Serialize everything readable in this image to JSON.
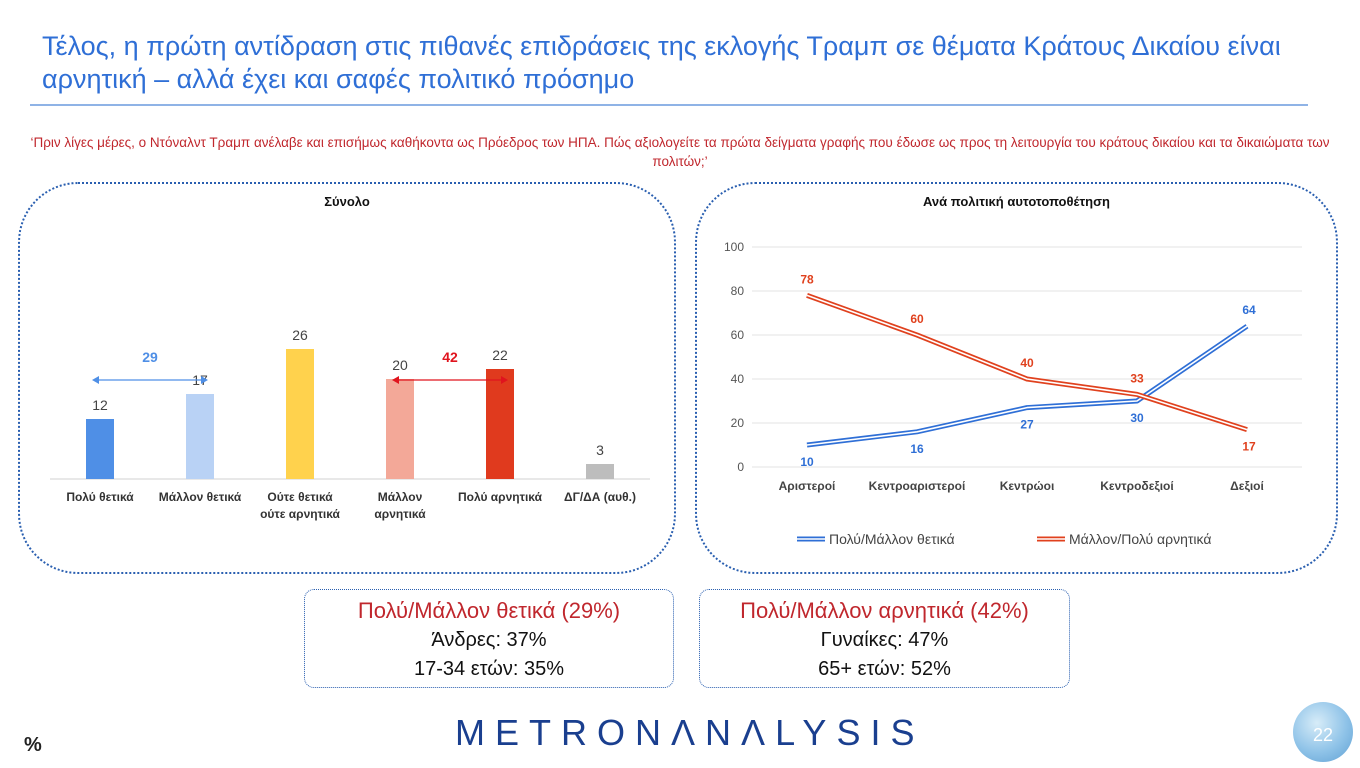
{
  "title": "Τέλος, η πρώτη αντίδραση στις πιθανές επιδράσεις της εκλογής Τραμπ σε θέματα Κράτους Δικαίου είναι αρνητική – αλλά έχει και σαφές πολιτικό πρόσημο",
  "question": "‘Πριν λίγες μέρες, ο Ντόναλντ Τραμπ ανέλαβε και επισήμως καθήκοντα ως Πρόεδρος των ΗΠΑ. Πώς αξιολογείτε τα πρώτα δείγματα γραφής που έδωσε ως προς τη λειτουργία του κράτους δικαίου και τα δικαιώματα των πολιτών;’",
  "chart_data": [
    {
      "type": "bar",
      "title": "Σύνολο",
      "categories": [
        [
          "Πολύ θετικά"
        ],
        [
          "Μάλλον θετικά"
        ],
        [
          "Ούτε θετικά",
          "ούτε αρνητικά"
        ],
        [
          "Μάλλον",
          "αρνητικά"
        ],
        [
          "Πολύ αρνητικά"
        ],
        [
          "ΔΓ/ΔΑ (αυθ.)"
        ]
      ],
      "values": [
        12,
        17,
        26,
        20,
        22,
        3
      ],
      "colors": [
        "#4f8fe6",
        "#b9d2f5",
        "#ffd24d",
        "#f3a898",
        "#e03a1e",
        "#bdbdbd"
      ],
      "ylim": [
        0,
        30
      ],
      "brackets": [
        {
          "label": "29",
          "from": 0,
          "to": 1,
          "color": "#4f8fe6"
        },
        {
          "label": "42",
          "from": 3,
          "to": 4,
          "color": "#e0141e"
        }
      ]
    },
    {
      "type": "line",
      "title": "Ανά πολιτική αυτοτοποθέτηση",
      "categories": [
        "Αριστεροί",
        "Κεντροαριστεροί",
        "Κεντρώοι",
        "Κεντροδεξιοί",
        "Δεξιοί"
      ],
      "ylim": [
        0,
        100
      ],
      "yticks": [
        0,
        20,
        40,
        60,
        80,
        100
      ],
      "grid": true,
      "legend": "bottom",
      "series": [
        {
          "name": "Πολύ/Μάλλον θετικά",
          "values": [
            10,
            16,
            27,
            30,
            64
          ],
          "color": "#2f6fd6"
        },
        {
          "name": "Μάλλον/Πολύ αρνητικά",
          "values": [
            78,
            60,
            40,
            33,
            17
          ],
          "color": "#e0411e"
        }
      ]
    }
  ],
  "boxes": {
    "left": {
      "heading": "Πολύ/Μάλλον θετικά (29%)",
      "line1": "Άνδρες: 37%",
      "line2": "17-34 ετών: 35%"
    },
    "right": {
      "heading": "Πολύ/Μάλλον αρνητικά (42%)",
      "line1": "Γυναίκες: 47%",
      "line2": "65+ ετών: 52%"
    }
  },
  "footer": {
    "percent": "%",
    "logo": "METRONΛNΛLYSIS",
    "page": "22"
  }
}
